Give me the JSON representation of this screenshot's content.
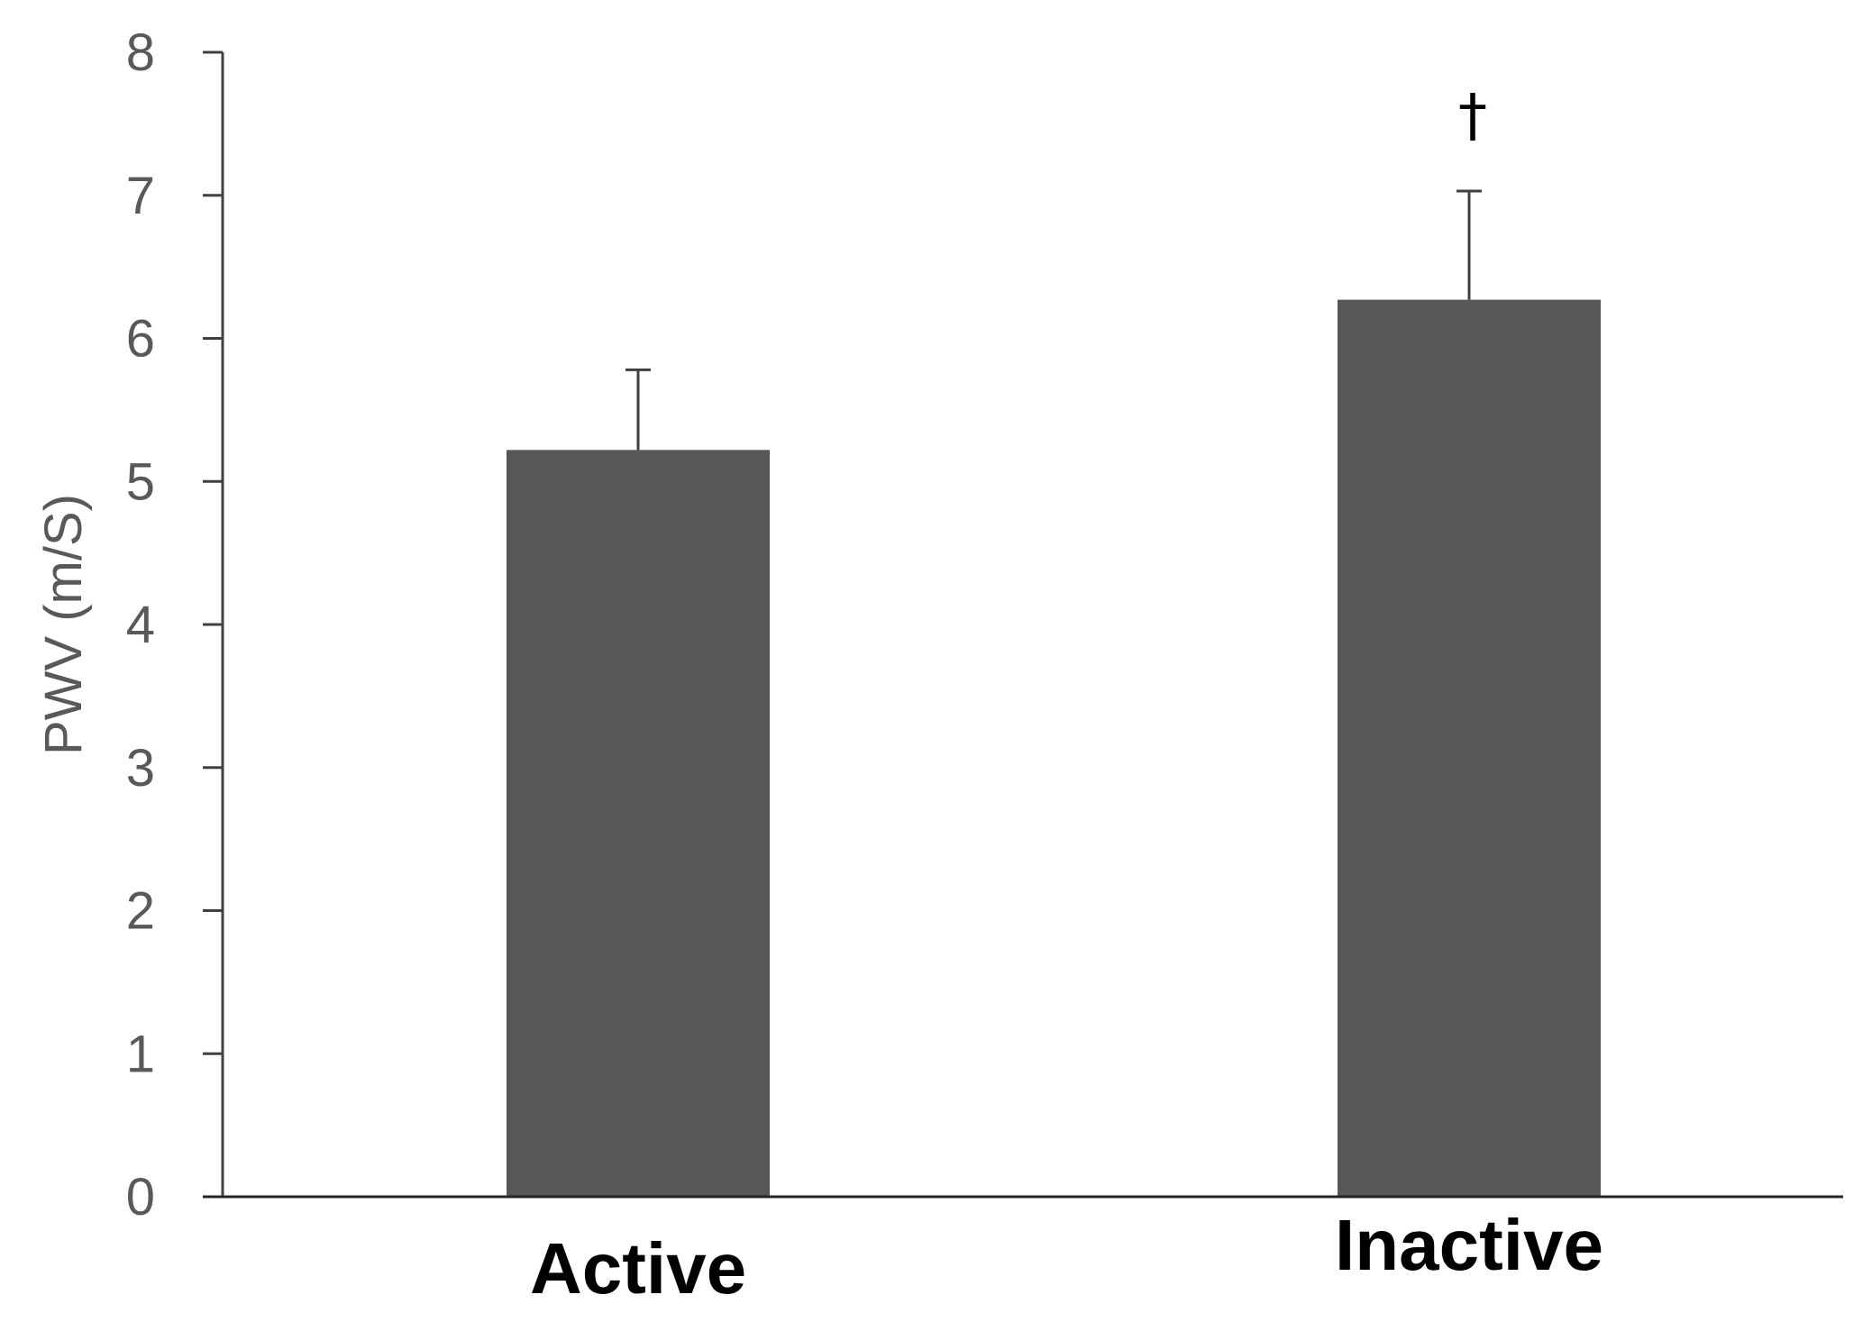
{
  "chart_data": {
    "type": "bar",
    "categories": [
      "Active",
      "Inactive"
    ],
    "series": [
      {
        "values": [
          5.22,
          6.27
        ],
        "error_plus": [
          0.56,
          0.76
        ]
      }
    ],
    "ylabel": "PWV (m/S)",
    "xlabel": "",
    "ylim": [
      0,
      8
    ],
    "yticks": [
      "0",
      "1",
      "2",
      "3",
      "4",
      "5",
      "6",
      "7",
      "8"
    ],
    "grid": false,
    "annotations": [
      {
        "category": "Inactive",
        "text": "†"
      }
    ]
  },
  "colors": {
    "bar": "#575757",
    "axis": "#404040",
    "errorbar": "#404040",
    "tick_text": "#595959"
  }
}
